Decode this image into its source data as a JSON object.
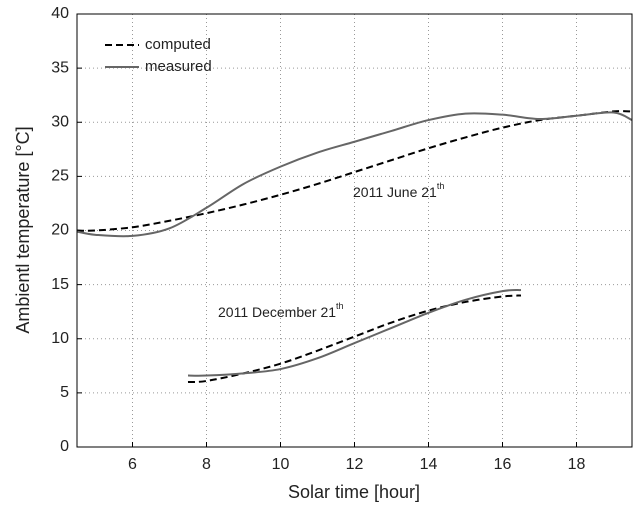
{
  "chart_data": {
    "type": "line",
    "xlabel": "Solar time [hour]",
    "ylabel": "Ambientl temperature  [°C]",
    "xlim": [
      4.5,
      19.5
    ],
    "xticks": [
      6,
      8,
      10,
      12,
      14,
      16,
      18
    ],
    "ylim": [
      0,
      40
    ],
    "yticks": [
      0,
      5,
      10,
      15,
      20,
      25,
      30,
      35,
      40
    ],
    "grid": true,
    "legend": "upper left",
    "annotations": [
      {
        "text": "2011 June 21",
        "sup": "th"
      },
      {
        "text": "2011 December 21",
        "sup": "th"
      }
    ],
    "series": [
      {
        "name": "computed",
        "color": "#000000",
        "dashed": true,
        "x": [
          4.5,
          5,
          6,
          7,
          8,
          9,
          10,
          11,
          12,
          13,
          14,
          15,
          16,
          17,
          18,
          19,
          19.5,
          null,
          7.5,
          8,
          9,
          10,
          11,
          12,
          13,
          14,
          15,
          16,
          16.5
        ],
        "values": [
          20,
          20,
          20.3,
          20.9,
          21.6,
          22.4,
          23.3,
          24.3,
          25.4,
          26.5,
          27.6,
          28.6,
          29.5,
          30.2,
          30.6,
          31,
          31,
          null,
          6,
          6.1,
          6.8,
          7.7,
          8.9,
          10.2,
          11.5,
          12.6,
          13.4,
          13.9,
          14
        ]
      },
      {
        "name": "measured",
        "color": "#666666",
        "dashed": false,
        "x": [
          4.5,
          5,
          6,
          7,
          8,
          9,
          10,
          11,
          12,
          13,
          14,
          15,
          16,
          17,
          18,
          19,
          19.5,
          null,
          7.5,
          8,
          9,
          10,
          11,
          12,
          13,
          14,
          15,
          16,
          16.5
        ],
        "values": [
          19.9,
          19.6,
          19.5,
          20.2,
          22.1,
          24.3,
          25.9,
          27.2,
          28.2,
          29.2,
          30.2,
          30.8,
          30.7,
          30.3,
          30.6,
          30.9,
          30.2,
          null,
          6.6,
          6.6,
          6.8,
          7.2,
          8.2,
          9.6,
          11,
          12.4,
          13.6,
          14.4,
          14.5
        ]
      }
    ]
  }
}
